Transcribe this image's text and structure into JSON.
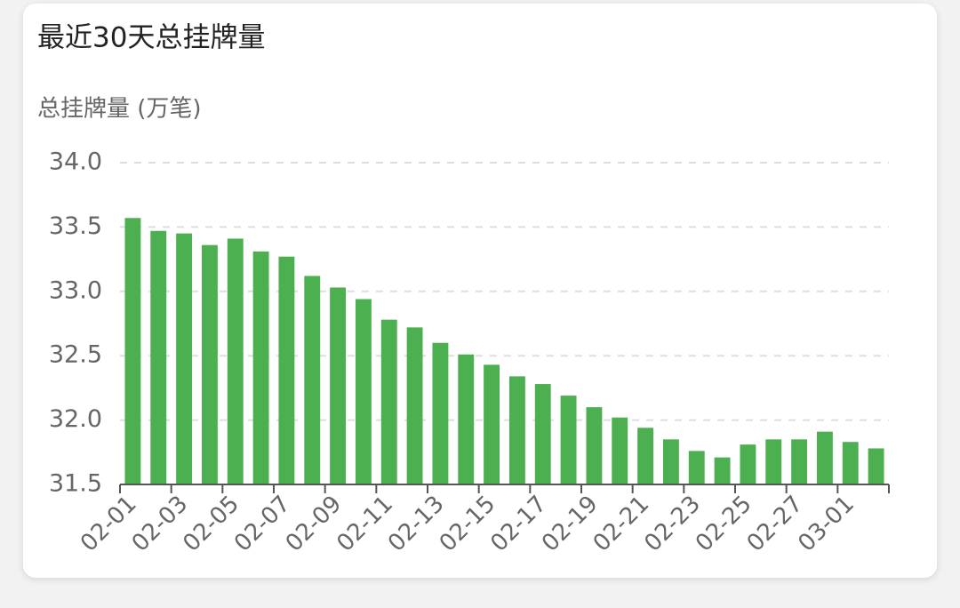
{
  "chart_data": {
    "type": "bar",
    "title": "最近30天总挂牌量",
    "y_label": "总挂牌量 (万笔)",
    "categories": [
      "02-01",
      null,
      "02-03",
      null,
      "02-05",
      null,
      "02-07",
      null,
      "02-09",
      null,
      "02-11",
      null,
      "02-13",
      null,
      "02-15",
      null,
      "02-17",
      null,
      "02-19",
      null,
      "02-21",
      null,
      "02-23",
      null,
      "02-25",
      null,
      "02-27",
      null,
      "03-01",
      null
    ],
    "values": [
      33.57,
      33.47,
      33.45,
      33.36,
      33.41,
      33.31,
      33.27,
      33.12,
      33.03,
      32.94,
      32.78,
      32.72,
      32.6,
      32.51,
      32.43,
      32.34,
      32.28,
      32.19,
      32.1,
      32.02,
      31.94,
      31.85,
      31.76,
      31.71,
      31.81,
      31.85,
      31.85,
      31.91,
      31.83,
      31.78
    ],
    "color": "#4caf50",
    "ylim": [
      31.5,
      34.0
    ],
    "yticks": [
      31.5,
      {
        "value": 32,
        "label": "32.0"
      },
      32.5,
      {
        "value": 33,
        "label": "33.0"
      },
      33.5,
      {
        "value": 34,
        "label": "34.0"
      }
    ],
    "grid": true
  }
}
